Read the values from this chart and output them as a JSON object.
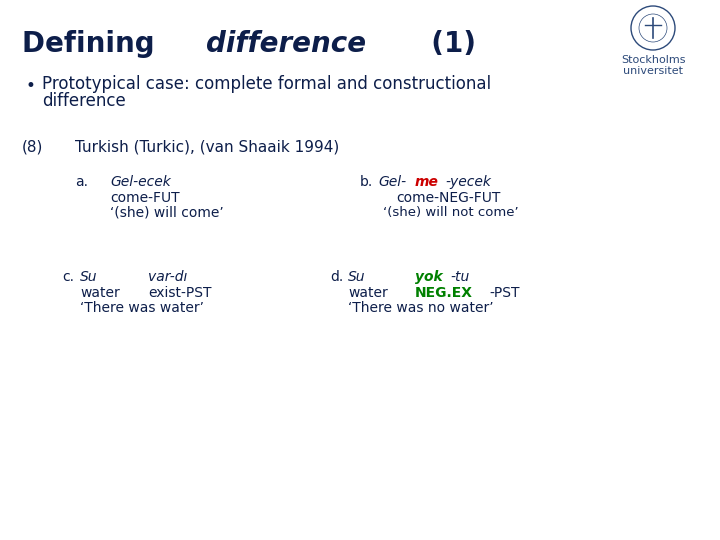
{
  "title_bold": "Defining ",
  "title_italic": "difference",
  "title_rest": "  (1)",
  "title_fontsize": 20,
  "bullet_text1": "Prototypical case: complete formal and constructional",
  "bullet_text2": "difference",
  "bullet_fontsize": 12,
  "example_label": "(8)",
  "example_header": "Turkish (Turkic), (van Shaaik 1994)",
  "example_fontsize": 11,
  "bg_color": "#ffffff",
  "dark_blue": "#0d1e4a",
  "red_color": "#cc0000",
  "green_color": "#008000",
  "a_label": "a.",
  "a_line1_italic": "Gel-ecek",
  "a_line2": "come-FUT",
  "a_line3": "‘(she) will come’",
  "b_label": "b.",
  "b_line1_pre": "Gel-",
  "b_line1_red": "me",
  "b_line1_post": "-yecek",
  "b_line2": "come-NEG-FUT",
  "b_line3": "‘(she) will not come’",
  "c_label": "c.",
  "c_line1_italic1": "Su",
  "c_line1_italic2": "var-dı",
  "c_line2_1": "water",
  "c_line2_2": "exist-PST",
  "c_line3": "‘There was water’",
  "d_label": "d.",
  "d_line1_italic1": "Su",
  "d_line1_green1": "yok",
  "d_line1_italic2": "-tu",
  "d_line2_1": "water",
  "d_line2_green": "NEG.EX",
  "d_line2_2": "-PST",
  "d_line3": "‘There was no water’",
  "small_fontsize": 10,
  "italic_fontsize": 10,
  "logo_text1": "Stockholms",
  "logo_text2": "universitet"
}
